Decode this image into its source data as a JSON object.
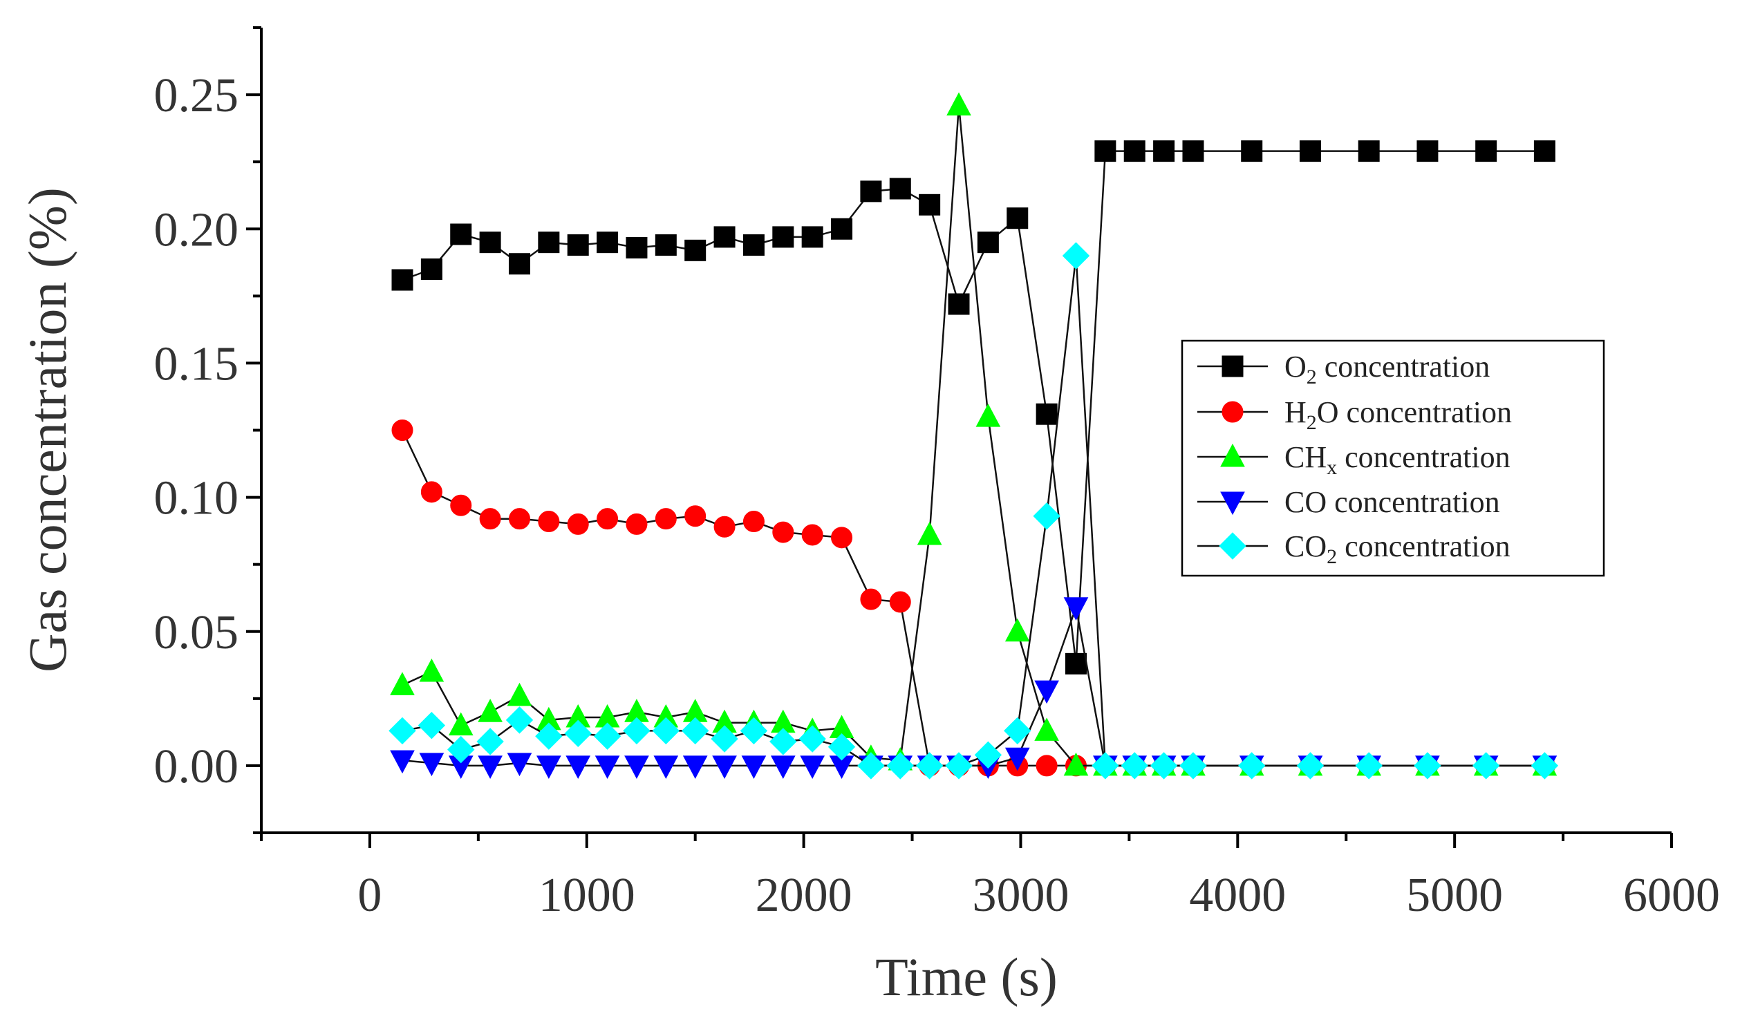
{
  "chart_data": {
    "type": "line",
    "title": "",
    "xlabel": "Time (s)",
    "ylabel": "Gas concentration (%)",
    "xlim": [
      -500,
      6000
    ],
    "ylim": [
      -0.025,
      0.275
    ],
    "x_ticks": [
      0,
      1000,
      2000,
      3000,
      4000,
      5000,
      6000
    ],
    "x_tick_labels": [
      "0",
      "1000",
      "2000",
      "3000",
      "4000",
      "5000",
      "6000"
    ],
    "y_ticks": [
      0,
      0.05,
      0.1,
      0.15,
      0.2,
      0.25
    ],
    "y_tick_labels": [
      "0.00",
      "0.05",
      "0.10",
      "0.15",
      "0.20",
      "0.25"
    ],
    "legend_position": "center-right",
    "series": [
      {
        "name": "O2 concentration",
        "legend_main": "O",
        "legend_sub": "2",
        "legend_rest": " concentration",
        "color": "#000000",
        "marker": "square",
        "x": [
          150,
          285,
          420,
          555,
          690,
          825,
          960,
          1095,
          1230,
          1365,
          1500,
          1635,
          1770,
          1905,
          2040,
          2175,
          2310,
          2445,
          2580,
          2715,
          2850,
          2985,
          3120,
          3255,
          3390,
          3525,
          3660,
          3795,
          4065,
          4335,
          4605,
          4875,
          5145,
          5415
        ],
        "values": [
          0.181,
          0.185,
          0.198,
          0.195,
          0.187,
          0.195,
          0.194,
          0.195,
          0.193,
          0.194,
          0.192,
          0.197,
          0.194,
          0.197,
          0.197,
          0.2,
          0.214,
          0.215,
          0.209,
          0.172,
          0.195,
          0.204,
          0.131,
          0.038,
          0.229,
          0.229,
          0.229,
          0.229,
          0.229,
          0.229,
          0.229,
          0.229,
          0.229,
          0.229
        ]
      },
      {
        "name": "H2O concentration",
        "legend_main": "H",
        "legend_sub": "2",
        "legend_rest": "O concentration",
        "color": "#ff0000",
        "marker": "circle",
        "x": [
          150,
          285,
          420,
          555,
          690,
          825,
          960,
          1095,
          1230,
          1365,
          1500,
          1635,
          1770,
          1905,
          2040,
          2175,
          2310,
          2445,
          2580,
          2715,
          2850,
          2985,
          3120,
          3255,
          3390,
          3525,
          3660,
          3795,
          4065,
          4335,
          4605,
          4875,
          5145,
          5415
        ],
        "values": [
          0.125,
          0.102,
          0.097,
          0.092,
          0.092,
          0.091,
          0.09,
          0.092,
          0.09,
          0.092,
          0.093,
          0.089,
          0.091,
          0.087,
          0.086,
          0.085,
          0.062,
          0.061,
          0.0,
          0.0,
          0.0,
          0.0,
          0.0,
          0.0,
          0.0,
          0.0,
          0.0,
          0.0,
          0.0,
          0.0,
          0.0,
          0.0,
          0.0,
          0.0
        ]
      },
      {
        "name": "CHx concentration",
        "legend_main": "CH",
        "legend_sub": "x",
        "legend_rest": " concentration",
        "color": "#00ff00",
        "marker": "triangle-up",
        "x": [
          150,
          285,
          420,
          555,
          690,
          825,
          960,
          1095,
          1230,
          1365,
          1500,
          1635,
          1770,
          1905,
          2040,
          2175,
          2310,
          2445,
          2580,
          2715,
          2850,
          2985,
          3120,
          3255,
          3390,
          3525,
          3660,
          3795,
          4065,
          4335,
          4605,
          4875,
          5145,
          5415
        ],
        "values": [
          0.03,
          0.035,
          0.015,
          0.02,
          0.026,
          0.017,
          0.018,
          0.018,
          0.02,
          0.018,
          0.02,
          0.016,
          0.016,
          0.016,
          0.013,
          0.014,
          0.003,
          0.002,
          0.086,
          0.246,
          0.13,
          0.05,
          0.013,
          0.0,
          0.0,
          0.0,
          0.0,
          0.0,
          0.0,
          0.0,
          0.0,
          0.0,
          0.0,
          0.0
        ]
      },
      {
        "name": "CO concentration",
        "legend_main": "CO",
        "legend_sub": "",
        "legend_rest": " concentration",
        "color": "#0000ff",
        "marker": "triangle-down",
        "x": [
          150,
          285,
          420,
          555,
          690,
          825,
          960,
          1095,
          1230,
          1365,
          1500,
          1635,
          1770,
          1905,
          2040,
          2175,
          2310,
          2445,
          2580,
          2715,
          2850,
          2985,
          3120,
          3255,
          3390,
          3525,
          3660,
          3795,
          4065,
          4335,
          4605,
          4875,
          5145,
          5415
        ],
        "values": [
          0.002,
          0.001,
          0.0,
          0.0,
          0.001,
          0.0,
          0.0,
          0.0,
          0.0,
          0.0,
          0.0,
          0.0,
          0.0,
          0.0,
          0.0,
          0.0,
          0.0,
          0.0,
          0.0,
          0.0,
          0.0,
          0.003,
          0.028,
          0.059,
          0.0,
          0.0,
          0.0,
          0.0,
          0.0,
          0.0,
          0.0,
          0.0,
          0.0,
          0.0
        ]
      },
      {
        "name": "CO2 concentration",
        "legend_main": "CO",
        "legend_sub": "2",
        "legend_rest": " concentration",
        "color": "#00ffff",
        "marker": "diamond",
        "x": [
          150,
          285,
          420,
          555,
          690,
          825,
          960,
          1095,
          1230,
          1365,
          1500,
          1635,
          1770,
          1905,
          2040,
          2175,
          2310,
          2445,
          2580,
          2715,
          2850,
          2985,
          3120,
          3255,
          3390,
          3525,
          3660,
          3795,
          4065,
          4335,
          4605,
          4875,
          5145,
          5415
        ],
        "values": [
          0.013,
          0.015,
          0.006,
          0.009,
          0.017,
          0.011,
          0.012,
          0.011,
          0.013,
          0.013,
          0.013,
          0.01,
          0.013,
          0.009,
          0.01,
          0.007,
          0.0,
          0.0,
          0.0,
          0.0,
          0.004,
          0.013,
          0.093,
          0.19,
          0.0,
          0.0,
          0.0,
          0.0,
          0.0,
          0.0,
          0.0,
          0.0,
          0.0,
          0.0
        ]
      }
    ]
  }
}
